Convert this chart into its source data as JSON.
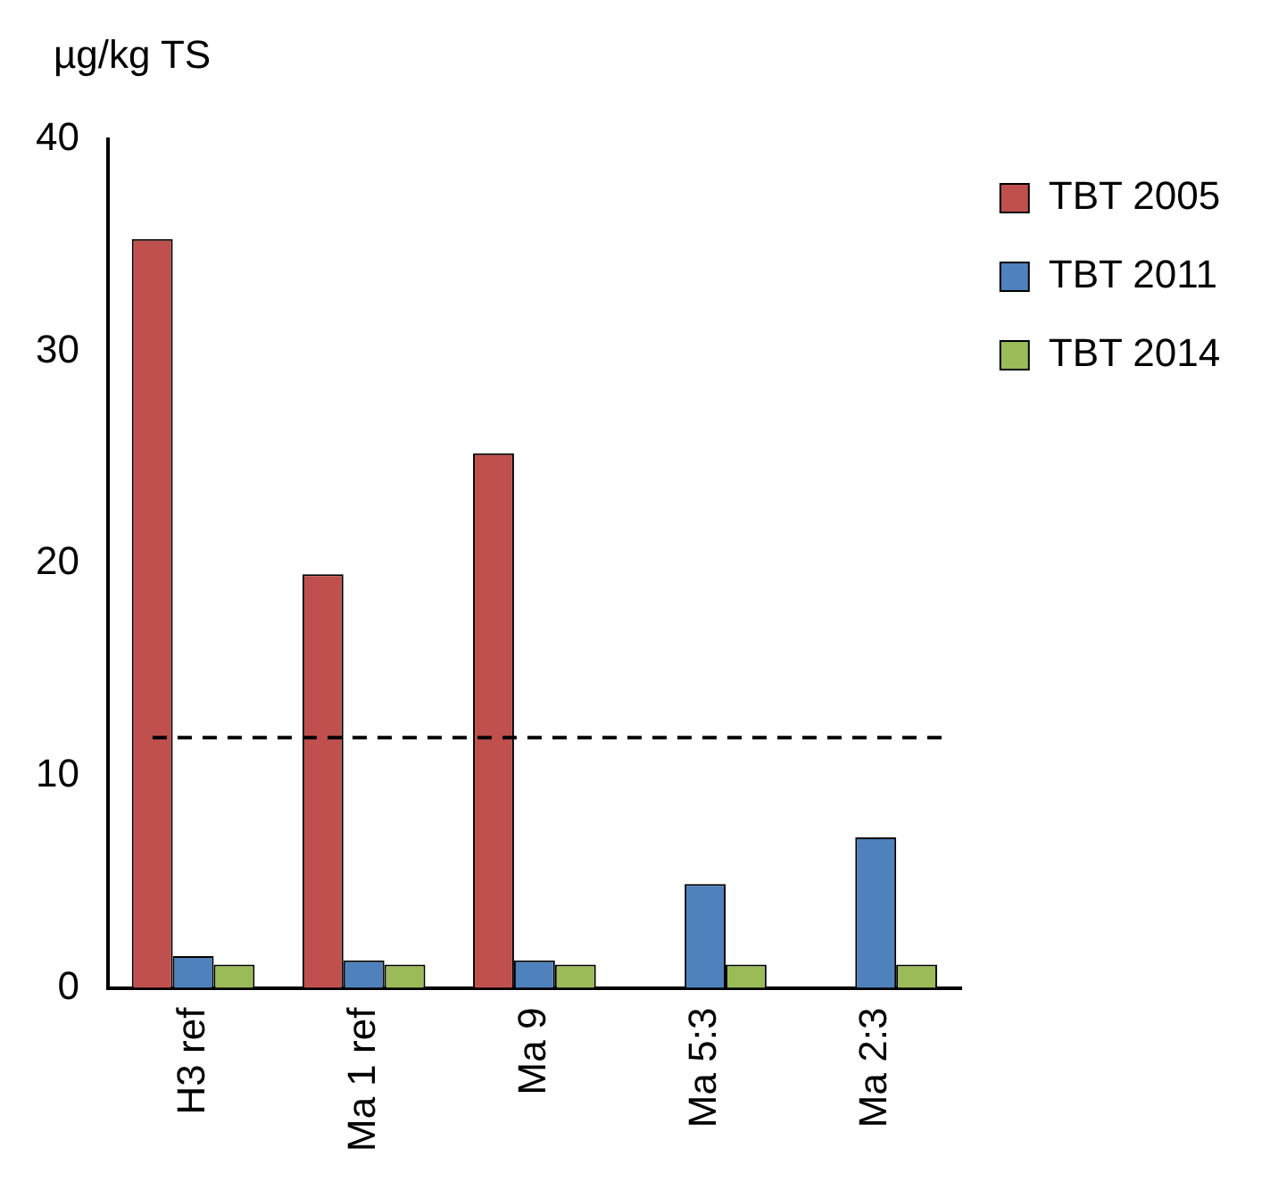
{
  "chart_data": {
    "type": "bar",
    "ylabel": "µg/kg TS",
    "categories": [
      "H3 ref",
      "Ma 1 ref",
      "Ma 9",
      "Ma 5:3",
      "Ma 2:3"
    ],
    "series": [
      {
        "name": "TBT 2005",
        "color": "#c0504d",
        "values": [
          35.3,
          19.5,
          25.2,
          null,
          null
        ]
      },
      {
        "name": "TBT 2011",
        "color": "#4f81bd",
        "values": [
          1.5,
          1.3,
          1.3,
          4.9,
          7.1
        ]
      },
      {
        "name": "TBT 2014",
        "color": "#9bbb59",
        "values": [
          1.1,
          1.1,
          1.1,
          1.1,
          1.1
        ]
      }
    ],
    "ylim": [
      0,
      40
    ],
    "yticks": [
      0,
      10,
      20,
      30,
      40
    ],
    "ref_lines": [
      {
        "axis": "y",
        "value": 11.8,
        "line_style": "dashed",
        "color": "#000000"
      }
    ],
    "legend": "top right",
    "grid": false
  }
}
